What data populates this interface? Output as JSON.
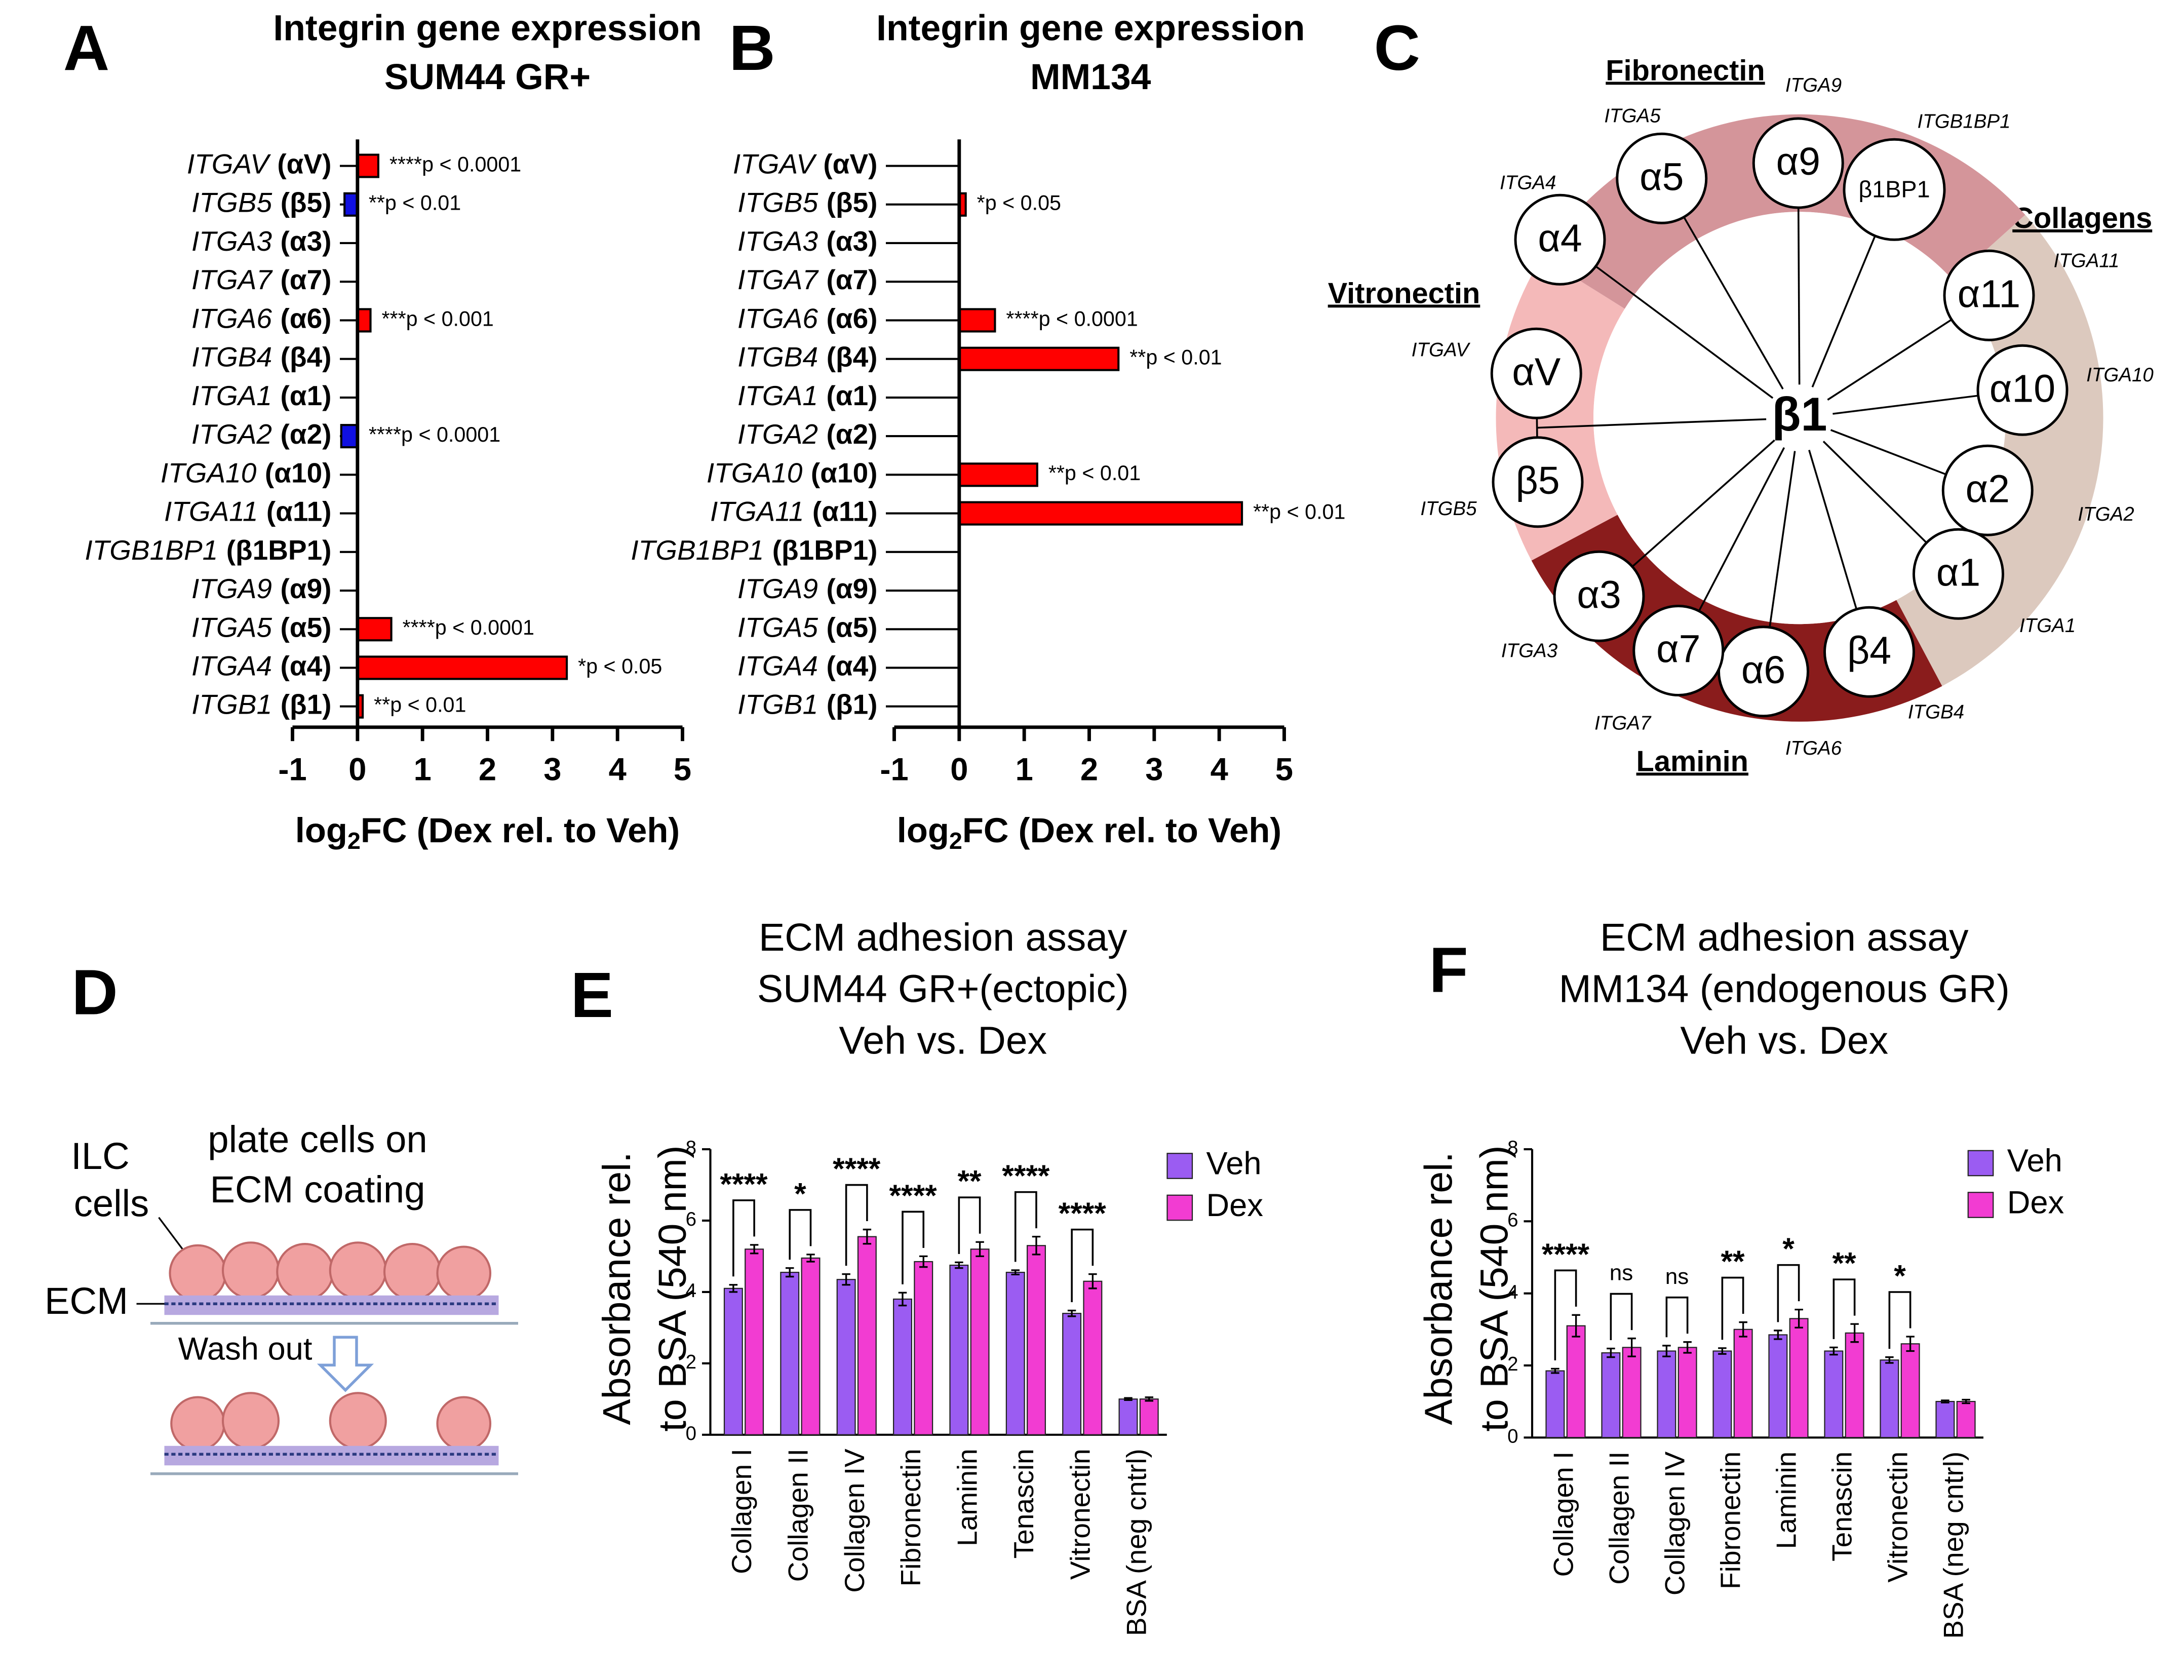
{
  "chart_data": [
    {
      "type": "hbar",
      "panel": "A",
      "title": [
        "Integrin gene expression",
        "SUM44 GR+"
      ],
      "categories": [
        "ITGAV",
        "ITGB5",
        "ITGA3",
        "ITGA7",
        "ITGA6",
        "ITGB4",
        "ITGA1",
        "ITGA2",
        "ITGA10",
        "ITGA11",
        "ITGB1BP1",
        "ITGA9",
        "ITGA5",
        "ITGA4",
        "ITGB1"
      ],
      "subunits": [
        "(αV)",
        "(β5)",
        "(α3)",
        "(α7)",
        "(α6)",
        "(β4)",
        "(α1)",
        "(α2)",
        "(α10)",
        "(α11)",
        "(β1BP1)",
        "(α9)",
        "(α5)",
        "(α4)",
        "(β1)"
      ],
      "values": [
        0.32,
        -0.2,
        null,
        null,
        0.2,
        null,
        null,
        -0.25,
        null,
        null,
        null,
        null,
        0.52,
        3.22,
        0.08
      ],
      "value_labels": [
        "****p < 0.0001",
        "**p < 0.01",
        null,
        null,
        "***p < 0.001",
        null,
        null,
        "****p < 0.0001",
        null,
        null,
        null,
        null,
        "****p < 0.0001",
        "*p < 0.05",
        "**p < 0.01"
      ],
      "color_up": "#ff0000",
      "color_down": "#1010e0",
      "xlim": [
        -1,
        5
      ],
      "xticks": [
        -1,
        0,
        1,
        2,
        3,
        4,
        5
      ],
      "xlabel": [
        "log",
        "2",
        "FC (Dex rel. to Veh)"
      ]
    },
    {
      "type": "hbar",
      "panel": "B",
      "title": [
        "Integrin gene expression",
        "MM134"
      ],
      "categories": [
        "ITGAV",
        "ITGB5",
        "ITGA3",
        "ITGA7",
        "ITGA6",
        "ITGB4",
        "ITGA1",
        "ITGA2",
        "ITGA10",
        "ITGA11",
        "ITGB1BP1",
        "ITGA9",
        "ITGA5",
        "ITGA4",
        "ITGB1"
      ],
      "subunits": [
        "(αV)",
        "(β5)",
        "(α3)",
        "(α7)",
        "(α6)",
        "(β4)",
        "(α1)",
        "(α2)",
        "(α10)",
        "(α11)",
        "(β1BP1)",
        "(α9)",
        "(α5)",
        "(α4)",
        "(β1)"
      ],
      "values": [
        null,
        0.1,
        null,
        null,
        0.55,
        2.45,
        null,
        null,
        1.2,
        4.35,
        null,
        null,
        null,
        null,
        null
      ],
      "value_labels": [
        null,
        "*p < 0.05",
        null,
        null,
        "****p < 0.0001",
        "**p < 0.01",
        null,
        null,
        "**p < 0.01",
        "**p < 0.01",
        null,
        null,
        null,
        null,
        null
      ],
      "color_up": "#ff0000",
      "color_down": "#1010e0",
      "xlim": [
        -1,
        5
      ],
      "xticks": [
        -1,
        0,
        1,
        2,
        3,
        4,
        5
      ],
      "xlabel": [
        "log",
        "2",
        "FC (Dex rel. to Veh)"
      ]
    },
    {
      "type": "grouped_bar",
      "panel": "E",
      "title": [
        "ECM adhesion assay",
        "SUM44 GR+(ectopic)",
        "Veh vs. Dex"
      ],
      "ylabel": [
        "Absorbance rel.",
        "to BSA (540 nm)"
      ],
      "categories": [
        "Collagen I",
        "Collagen II",
        "Collagen IV",
        "Fibronectin",
        "Laminin",
        "Tenascin",
        "Vitronectin",
        "BSA (neg cntrl)"
      ],
      "series": [
        {
          "name": "Veh",
          "color": "#9b5cf2",
          "values": [
            4.1,
            4.55,
            4.35,
            3.8,
            4.75,
            4.55,
            3.4,
            1.0
          ],
          "errors": [
            0.1,
            0.12,
            0.15,
            0.18,
            0.08,
            0.06,
            0.08,
            0.03
          ]
        },
        {
          "name": "Dex",
          "color": "#f23cd2",
          "values": [
            5.2,
            4.95,
            5.55,
            4.85,
            5.2,
            5.3,
            4.3,
            1.0
          ],
          "errors": [
            0.12,
            0.1,
            0.2,
            0.15,
            0.2,
            0.25,
            0.2,
            0.05
          ]
        }
      ],
      "significance": [
        "****",
        "*",
        "****",
        "****",
        "**",
        "****",
        "****",
        null
      ],
      "ylim": [
        0,
        8
      ],
      "yticks": [
        0,
        2,
        4,
        6,
        8
      ]
    },
    {
      "type": "grouped_bar",
      "panel": "F",
      "title": [
        "ECM adhesion assay",
        "MM134 (endogenous GR)",
        "Veh vs. Dex"
      ],
      "ylabel": [
        "Absorbance rel.",
        "to BSA (540 nm)"
      ],
      "categories": [
        "Collagen I",
        "Collagen II",
        "Collagen IV",
        "Fibronectin",
        "Laminin",
        "Tenascin",
        "Vitronectin",
        "BSA (neg cntrl)"
      ],
      "series": [
        {
          "name": "Veh",
          "color": "#9b5cf2",
          "values": [
            1.85,
            2.35,
            2.4,
            2.4,
            2.85,
            2.4,
            2.15,
            1.0
          ],
          "errors": [
            0.06,
            0.12,
            0.15,
            0.08,
            0.12,
            0.1,
            0.08,
            0.03
          ]
        },
        {
          "name": "Dex",
          "color": "#f23cd2",
          "values": [
            3.1,
            2.5,
            2.5,
            3.0,
            3.3,
            2.9,
            2.6,
            1.0
          ],
          "errors": [
            0.3,
            0.25,
            0.15,
            0.2,
            0.25,
            0.25,
            0.2,
            0.05
          ]
        }
      ],
      "significance": [
        "****",
        "ns",
        "ns",
        "**",
        "*",
        "**",
        "*",
        null
      ],
      "ylim": [
        0,
        8
      ],
      "yticks": [
        0,
        2,
        4,
        6,
        8
      ]
    }
  ],
  "panel_c": {
    "panel": "C",
    "center": "β1",
    "groups": [
      {
        "name": "Collagens",
        "color": "#dcc9be"
      },
      {
        "name": "Laminin",
        "color": "#8a1c1c"
      },
      {
        "name": "Vitronectin",
        "color": "#f4b9b9"
      },
      {
        "name": "Fibronectin",
        "color": "#d4959a"
      }
    ],
    "nodes": [
      {
        "label": "α4",
        "gene": "ITGA4"
      },
      {
        "label": "α5",
        "gene": "ITGA5"
      },
      {
        "label": "α9",
        "gene": "ITGA9"
      },
      {
        "label": "β1BP1",
        "gene": "ITGB1BP1"
      },
      {
        "label": "α11",
        "gene": "ITGA11"
      },
      {
        "label": "α10",
        "gene": "ITGA10"
      },
      {
        "label": "α2",
        "gene": "ITGA2"
      },
      {
        "label": "α1",
        "gene": "ITGA1"
      },
      {
        "label": "β4",
        "gene": "ITGB4"
      },
      {
        "label": "α6",
        "gene": "ITGA6"
      },
      {
        "label": "α7",
        "gene": "ITGA7"
      },
      {
        "label": "α3",
        "gene": "ITGA3"
      },
      {
        "label": "β5",
        "gene": "ITGB5"
      },
      {
        "label": "αV",
        "gene": "ITGAV"
      }
    ]
  },
  "panel_d": {
    "panel": "D",
    "cells_label": [
      "ILC",
      "cells"
    ],
    "plate_label": [
      "plate cells on",
      "ECM coating"
    ],
    "ecm_label": "ECM",
    "wash_label": "Wash out"
  }
}
